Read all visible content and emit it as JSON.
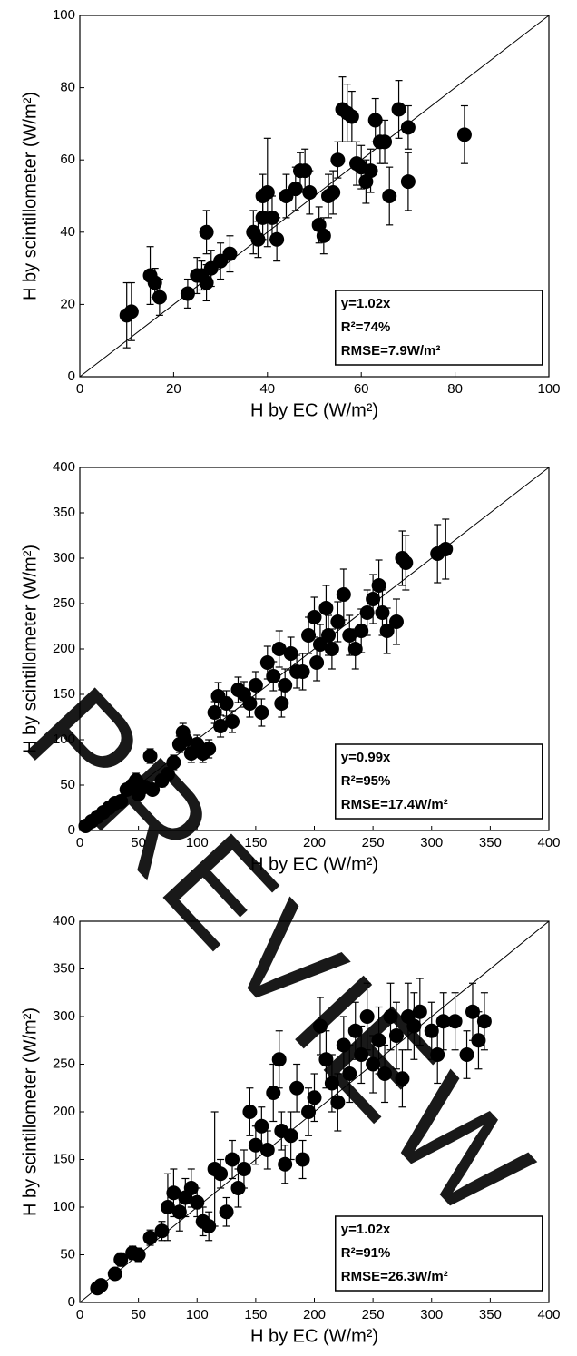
{
  "watermark": "PREVIEW",
  "chart_data": [
    {
      "type": "scatter",
      "x_label": "H by EC (W/m²)",
      "y_label": "H by scintillometer (W/m²)",
      "color": "#000000",
      "xlim": [
        0,
        100
      ],
      "ylim": [
        0,
        100
      ],
      "xticks": [
        0,
        20,
        40,
        60,
        80,
        100
      ],
      "yticks": [
        0,
        20,
        40,
        60,
        80,
        100
      ],
      "annotations": [
        "y=1.02x",
        "R²=74%",
        "RMSE=7.9W/m²"
      ],
      "x": [
        10,
        11,
        15,
        16,
        17,
        23,
        25,
        26,
        27,
        27,
        28,
        30,
        32,
        37,
        38,
        39,
        39,
        40,
        41,
        42,
        44,
        46,
        47,
        48,
        49,
        51,
        52,
        53,
        54,
        55,
        56,
        57,
        58,
        59,
        60,
        61,
        62,
        63,
        64,
        65,
        66,
        68,
        70,
        70,
        82
      ],
      "values": [
        17,
        18,
        28,
        26,
        22,
        23,
        28,
        28,
        26,
        40,
        30,
        32,
        34,
        40,
        38,
        44,
        50,
        51,
        44,
        38,
        50,
        52,
        57,
        57,
        51,
        42,
        39,
        50,
        51,
        60,
        74,
        73,
        72,
        59,
        58,
        54,
        57,
        71,
        65,
        65,
        50,
        74,
        69,
        54,
        67
      ],
      "errors": [
        9,
        8,
        8,
        4,
        5,
        4,
        5,
        4,
        5,
        6,
        5,
        5,
        5,
        6,
        5,
        6,
        6,
        15,
        6,
        6,
        6,
        6,
        5,
        6,
        6,
        5,
        5,
        6,
        6,
        5,
        9,
        8,
        7,
        6,
        6,
        6,
        6,
        6,
        6,
        6,
        8,
        8,
        6,
        8,
        8
      ]
    },
    {
      "type": "scatter",
      "x_label": "H by EC (W/m²)",
      "y_label": "H by scintillometer (W/m²)",
      "color": "#000000",
      "xlim": [
        0,
        400
      ],
      "ylim": [
        0,
        400
      ],
      "xticks": [
        0,
        50,
        100,
        150,
        200,
        250,
        300,
        350,
        400
      ],
      "yticks": [
        0,
        50,
        100,
        150,
        200,
        250,
        300,
        350,
        400
      ],
      "annotations": [
        "y=0.99x",
        "R²=95%",
        "RMSE=17.4W/m²"
      ],
      "x": [
        5,
        10,
        15,
        20,
        25,
        30,
        35,
        40,
        45,
        48,
        50,
        55,
        60,
        62,
        70,
        75,
        80,
        85,
        88,
        90,
        95,
        100,
        105,
        110,
        115,
        118,
        120,
        125,
        130,
        135,
        140,
        145,
        150,
        155,
        160,
        165,
        170,
        172,
        175,
        180,
        185,
        190,
        195,
        200,
        202,
        205,
        210,
        212,
        215,
        220,
        225,
        230,
        235,
        240,
        245,
        250,
        255,
        258,
        262,
        270,
        275,
        278,
        305,
        312
      ],
      "values": [
        5,
        10,
        15,
        20,
        25,
        30,
        32,
        45,
        50,
        55,
        40,
        48,
        82,
        45,
        55,
        62,
        75,
        95,
        108,
        100,
        85,
        95,
        85,
        90,
        130,
        148,
        115,
        140,
        120,
        155,
        150,
        140,
        160,
        130,
        185,
        170,
        200,
        140,
        160,
        195,
        175,
        175,
        215,
        235,
        185,
        205,
        245,
        215,
        200,
        230,
        260,
        215,
        200,
        220,
        240,
        255,
        270,
        240,
        220,
        230,
        300,
        295,
        305,
        310
      ],
      "errors": [
        3,
        4,
        4,
        5,
        5,
        6,
        6,
        6,
        7,
        8,
        7,
        7,
        8,
        6,
        7,
        7,
        8,
        9,
        10,
        10,
        10,
        10,
        10,
        10,
        12,
        15,
        12,
        14,
        12,
        14,
        14,
        15,
        15,
        15,
        18,
        16,
        20,
        15,
        18,
        18,
        18,
        20,
        20,
        22,
        20,
        22,
        25,
        22,
        22,
        22,
        28,
        22,
        22,
        24,
        25,
        27,
        28,
        25,
        25,
        25,
        30,
        30,
        32,
        33
      ]
    },
    {
      "type": "scatter",
      "x_label": "H by EC (W/m²)",
      "y_label": "H by scintillometer (W/m²)",
      "color": "#000000",
      "xlim": [
        0,
        400
      ],
      "ylim": [
        0,
        400
      ],
      "xticks": [
        0,
        50,
        100,
        150,
        200,
        250,
        300,
        350,
        400
      ],
      "yticks": [
        0,
        50,
        100,
        150,
        200,
        250,
        300,
        350,
        400
      ],
      "annotations": [
        "y=1.02x",
        "R²=91%",
        "RMSE=26.3W/m²"
      ],
      "x": [
        15,
        18,
        30,
        35,
        45,
        50,
        60,
        70,
        75,
        80,
        85,
        90,
        95,
        100,
        105,
        110,
        115,
        120,
        125,
        130,
        135,
        140,
        145,
        150,
        155,
        160,
        165,
        170,
        172,
        175,
        180,
        185,
        190,
        195,
        200,
        205,
        210,
        215,
        220,
        225,
        230,
        235,
        240,
        245,
        250,
        255,
        260,
        265,
        270,
        275,
        280,
        285,
        290,
        300,
        305,
        310,
        320,
        330,
        335,
        340,
        345
      ],
      "values": [
        15,
        18,
        30,
        45,
        52,
        50,
        68,
        75,
        100,
        115,
        95,
        110,
        120,
        105,
        85,
        80,
        140,
        135,
        95,
        150,
        120,
        140,
        200,
        165,
        185,
        160,
        220,
        255,
        180,
        145,
        175,
        225,
        150,
        200,
        215,
        290,
        255,
        230,
        210,
        270,
        240,
        285,
        260,
        300,
        250,
        275,
        240,
        300,
        280,
        235,
        300,
        290,
        305,
        285,
        260,
        295,
        295,
        260,
        305,
        275,
        295
      ],
      "errors": [
        5,
        5,
        6,
        7,
        7,
        7,
        8,
        10,
        35,
        25,
        20,
        20,
        20,
        15,
        15,
        15,
        60,
        15,
        15,
        20,
        20,
        20,
        25,
        20,
        20,
        20,
        30,
        30,
        20,
        20,
        25,
        25,
        20,
        25,
        25,
        30,
        30,
        30,
        30,
        30,
        30,
        30,
        30,
        35,
        30,
        35,
        30,
        35,
        35,
        30,
        35,
        35,
        35,
        30,
        30,
        30,
        30,
        25,
        30,
        30,
        30
      ]
    }
  ]
}
